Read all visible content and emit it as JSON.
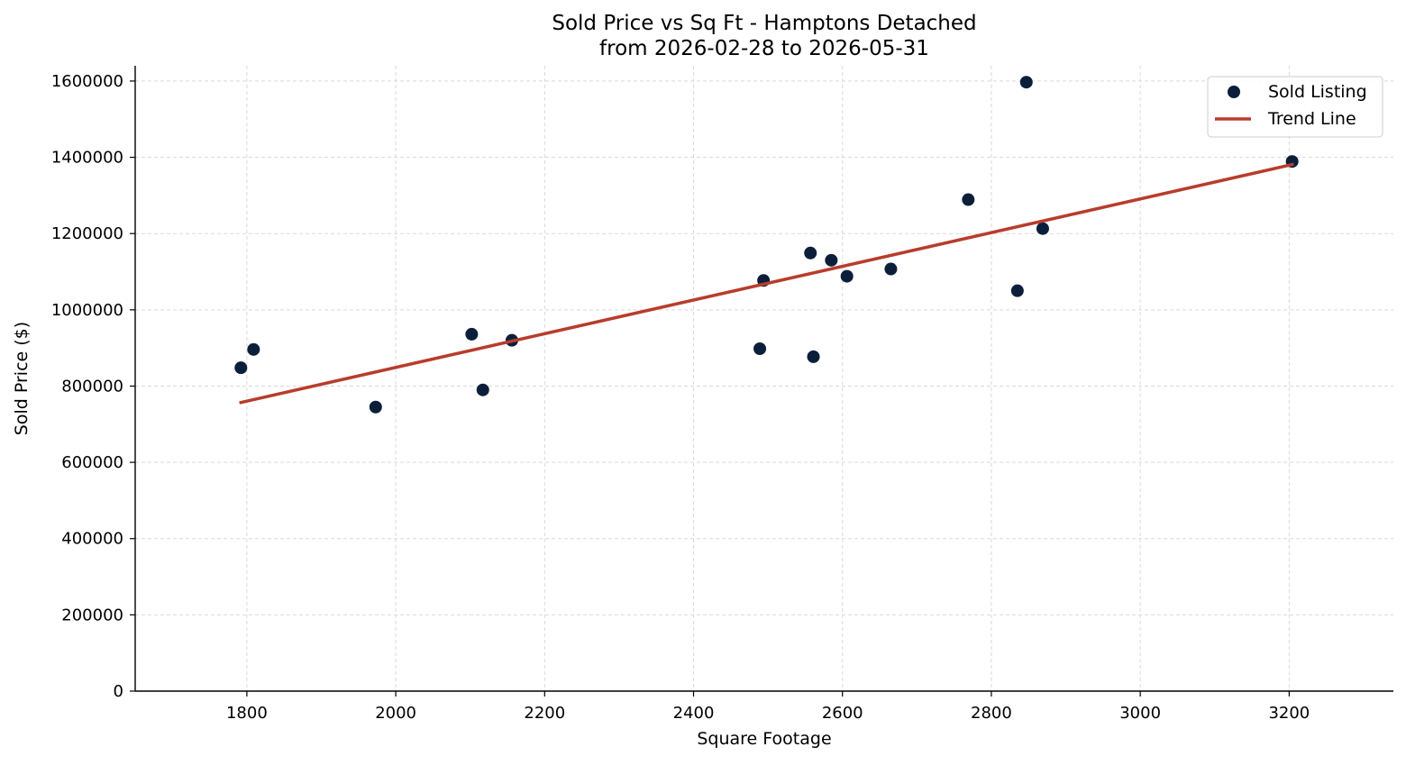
{
  "chart_data": {
    "type": "scatter",
    "title": "Sold Price vs Sq Ft - Hamptons Detached",
    "subtitle": "from 2026-02-28 to 2026-05-31",
    "xlabel": "Square Footage",
    "ylabel": "Sold Price ($)",
    "xlim": [
      1650,
      3340
    ],
    "ylim": [
      0,
      1640000
    ],
    "xticks": [
      1800,
      2000,
      2200,
      2400,
      2600,
      2800,
      3000,
      3200
    ],
    "yticks": [
      0,
      200000,
      400000,
      600000,
      800000,
      1000000,
      1200000,
      1400000,
      1600000
    ],
    "grid": true,
    "legend_position": "top-right",
    "series": [
      {
        "name": "Sold Listing",
        "kind": "scatter",
        "color": "#0b1f3a",
        "points": [
          {
            "x": 1792,
            "y": 848000
          },
          {
            "x": 1809,
            "y": 896000
          },
          {
            "x": 1973,
            "y": 745000
          },
          {
            "x": 2102,
            "y": 936000
          },
          {
            "x": 2117,
            "y": 790000
          },
          {
            "x": 2156,
            "y": 920000
          },
          {
            "x": 2489,
            "y": 898000
          },
          {
            "x": 2494,
            "y": 1077000
          },
          {
            "x": 2557,
            "y": 1149000
          },
          {
            "x": 2561,
            "y": 877000
          },
          {
            "x": 2585,
            "y": 1130000
          },
          {
            "x": 2606,
            "y": 1088000
          },
          {
            "x": 2665,
            "y": 1107000
          },
          {
            "x": 2769,
            "y": 1289000
          },
          {
            "x": 2835,
            "y": 1050000
          },
          {
            "x": 2847,
            "y": 1597000
          },
          {
            "x": 2869,
            "y": 1213000
          },
          {
            "x": 3204,
            "y": 1389000
          }
        ]
      },
      {
        "name": "Trend Line",
        "kind": "line",
        "color": "#b83c2c",
        "points": [
          {
            "x": 1792,
            "y": 757000
          },
          {
            "x": 3204,
            "y": 1381000
          }
        ]
      }
    ]
  }
}
